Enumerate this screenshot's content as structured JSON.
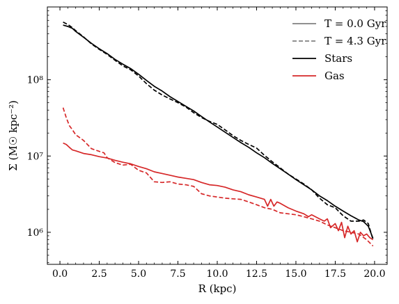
{
  "chart_data": {
    "type": "line",
    "xlabel": "R (kpc)",
    "ylabel": "Σ (M☉ kpc⁻²)",
    "xlim": [
      -0.8,
      20.8
    ],
    "ylim": [
      380000.0,
      900000000.0
    ],
    "yscale": "log",
    "grid": false,
    "legend_placement": "top-right",
    "x_ticks": [
      0.0,
      2.5,
      5.0,
      7.5,
      10.0,
      12.5,
      15.0,
      17.5,
      20.0
    ],
    "x_tick_labels": [
      "0.0",
      "2.5",
      "5.0",
      "7.5",
      "10.0",
      "12.5",
      "15.0",
      "17.5",
      "20.0"
    ],
    "y_ticks": [
      1000000,
      10000000,
      100000000
    ],
    "y_tick_labels": [
      "10⁶",
      "10⁷",
      "10⁸"
    ],
    "legend": [
      {
        "label": "T = 0.0 Gyr",
        "color": "#808080",
        "style": "solid"
      },
      {
        "label": "T = 4.3 Gyr",
        "color": "#808080",
        "style": "dashed"
      },
      {
        "label": "Stars",
        "color": "#000000",
        "style": "solid"
      },
      {
        "label": "Gas",
        "color": "#d62728",
        "style": "solid"
      }
    ],
    "series": [
      {
        "color": "#000000",
        "style": "solid",
        "points": [
          [
            0.2,
            520000000.0
          ],
          [
            0.5,
            500000000.0
          ],
          [
            0.8,
            470000000.0
          ],
          [
            1.0,
            430000000.0
          ],
          [
            1.5,
            360000000.0
          ],
          [
            2.0,
            300000000.0
          ],
          [
            2.5,
            255000000.0
          ],
          [
            3.0,
            220000000.0
          ],
          [
            3.5,
            185000000.0
          ],
          [
            4.0,
            160000000.0
          ],
          [
            4.5,
            140000000.0
          ],
          [
            5.0,
            118000000.0
          ],
          [
            5.5,
            98000000.0
          ],
          [
            6.0,
            82000000.0
          ],
          [
            6.5,
            71000000.0
          ],
          [
            7.0,
            60000000.0
          ],
          [
            7.5,
            52000000.0
          ],
          [
            8.0,
            45000000.0
          ],
          [
            8.5,
            39000000.0
          ],
          [
            9.0,
            33000000.0
          ],
          [
            9.5,
            28000000.0
          ],
          [
            10.0,
            24000000.0
          ],
          [
            10.5,
            20500000.0
          ],
          [
            11.0,
            17500000.0
          ],
          [
            11.5,
            15000000.0
          ],
          [
            12.0,
            13000000.0
          ],
          [
            12.5,
            11000000.0
          ],
          [
            13.0,
            9500000.0
          ],
          [
            13.5,
            8000000.0
          ],
          [
            14.0,
            6800000.0
          ],
          [
            14.5,
            5800000.0
          ],
          [
            15.0,
            4900000.0
          ],
          [
            15.5,
            4200000.0
          ],
          [
            16.0,
            3600000.0
          ],
          [
            16.5,
            3000000.0
          ],
          [
            17.0,
            2600000.0
          ],
          [
            17.5,
            2200000.0
          ],
          [
            18.0,
            1900000.0
          ],
          [
            18.5,
            1650000.0
          ],
          [
            19.0,
            1450000.0
          ],
          [
            19.3,
            1380000.0
          ],
          [
            19.6,
            1200000.0
          ],
          [
            19.9,
            830000.0
          ]
        ]
      },
      {
        "color": "#000000",
        "style": "dashed",
        "points": [
          [
            0.2,
            570000000.0
          ],
          [
            0.5,
            530000000.0
          ],
          [
            0.8,
            480000000.0
          ],
          [
            1.0,
            440000000.0
          ],
          [
            1.5,
            365000000.0
          ],
          [
            2.0,
            295000000.0
          ],
          [
            2.5,
            250000000.0
          ],
          [
            3.0,
            215000000.0
          ],
          [
            3.5,
            180000000.0
          ],
          [
            4.0,
            152000000.0
          ],
          [
            4.5,
            135000000.0
          ],
          [
            5.0,
            112000000.0
          ],
          [
            5.5,
            89000000.0
          ],
          [
            6.0,
            73000000.0
          ],
          [
            6.5,
            63000000.0
          ],
          [
            7.0,
            56000000.0
          ],
          [
            7.5,
            50000000.0
          ],
          [
            8.0,
            44000000.0
          ],
          [
            8.5,
            37000000.0
          ],
          [
            9.0,
            32000000.0
          ],
          [
            9.5,
            28500000.0
          ],
          [
            10.0,
            26000000.0
          ],
          [
            10.5,
            22000000.0
          ],
          [
            11.0,
            18500000.0
          ],
          [
            11.5,
            16000000.0
          ],
          [
            12.0,
            14200000.0
          ],
          [
            12.5,
            12700000.0
          ],
          [
            13.0,
            10200000.0
          ],
          [
            13.5,
            8400000.0
          ],
          [
            14.0,
            7000000.0
          ],
          [
            14.5,
            5800000.0
          ],
          [
            15.0,
            5000000.0
          ],
          [
            15.5,
            4300000.0
          ],
          [
            16.0,
            3600000.0
          ],
          [
            16.5,
            2800000.0
          ],
          [
            17.0,
            2300000.0
          ],
          [
            17.5,
            2100000.0
          ],
          [
            18.0,
            1650000.0
          ],
          [
            18.5,
            1400000.0
          ],
          [
            19.0,
            1400000.0
          ],
          [
            19.3,
            1450000.0
          ],
          [
            19.6,
            1300000.0
          ],
          [
            19.9,
            800000.0
          ]
        ]
      },
      {
        "color": "#d62728",
        "style": "solid",
        "points": [
          [
            0.2,
            14800000.0
          ],
          [
            0.4,
            14200000.0
          ],
          [
            0.6,
            13000000.0
          ],
          [
            0.8,
            12000000.0
          ],
          [
            1.0,
            11700000.0
          ],
          [
            1.5,
            10800000.0
          ],
          [
            2.0,
            10400000.0
          ],
          [
            2.5,
            9800000.0
          ],
          [
            3.0,
            9400000.0
          ],
          [
            3.5,
            8800000.0
          ],
          [
            4.0,
            8300000.0
          ],
          [
            4.5,
            7900000.0
          ],
          [
            5.0,
            7300000.0
          ],
          [
            5.5,
            6800000.0
          ],
          [
            6.0,
            6200000.0
          ],
          [
            6.5,
            5900000.0
          ],
          [
            7.0,
            5600000.0
          ],
          [
            7.5,
            5300000.0
          ],
          [
            8.0,
            5100000.0
          ],
          [
            8.5,
            4900000.0
          ],
          [
            9.0,
            4500000.0
          ],
          [
            9.5,
            4200000.0
          ],
          [
            10.0,
            4100000.0
          ],
          [
            10.5,
            3900000.0
          ],
          [
            11.0,
            3600000.0
          ],
          [
            11.5,
            3400000.0
          ],
          [
            12.0,
            3100000.0
          ],
          [
            12.5,
            2900000.0
          ],
          [
            13.0,
            2700000.0
          ],
          [
            13.2,
            2200000.0
          ],
          [
            13.4,
            2700000.0
          ],
          [
            13.6,
            2200000.0
          ],
          [
            13.8,
            2500000.0
          ],
          [
            14.0,
            2400000.0
          ],
          [
            14.5,
            2100000.0
          ],
          [
            15.0,
            1900000.0
          ],
          [
            15.5,
            1750000.0
          ],
          [
            15.8,
            1600000.0
          ],
          [
            16.0,
            1700000.0
          ],
          [
            16.5,
            1500000.0
          ],
          [
            16.8,
            1400000.0
          ],
          [
            17.0,
            1500000.0
          ],
          [
            17.2,
            1150000.0
          ],
          [
            17.5,
            1300000.0
          ],
          [
            17.7,
            1050000.0
          ],
          [
            17.9,
            1350000.0
          ],
          [
            18.1,
            850000.0
          ],
          [
            18.3,
            1200000.0
          ],
          [
            18.5,
            950000.0
          ],
          [
            18.7,
            1050000.0
          ],
          [
            18.9,
            750000.0
          ],
          [
            19.1,
            1000000.0
          ],
          [
            19.3,
            900000.0
          ],
          [
            19.5,
            950000.0
          ],
          [
            19.7,
            850000.0
          ],
          [
            19.9,
            800000.0
          ]
        ]
      },
      {
        "color": "#d62728",
        "style": "dashed",
        "points": [
          [
            0.2,
            43000000.0
          ],
          [
            0.4,
            32000000.0
          ],
          [
            0.6,
            25000000.0
          ],
          [
            0.8,
            22000000.0
          ],
          [
            1.0,
            19000000.0
          ],
          [
            1.5,
            16000000.0
          ],
          [
            2.0,
            12500000.0
          ],
          [
            2.5,
            11500000.0
          ],
          [
            2.8,
            11000000.0
          ],
          [
            3.0,
            9500000.0
          ],
          [
            3.5,
            8200000.0
          ],
          [
            4.0,
            7600000.0
          ],
          [
            4.5,
            7800000.0
          ],
          [
            5.0,
            6500000.0
          ],
          [
            5.5,
            6000000.0
          ],
          [
            6.0,
            4600000.0
          ],
          [
            6.5,
            4500000.0
          ],
          [
            7.0,
            4600000.0
          ],
          [
            7.5,
            4300000.0
          ],
          [
            8.0,
            4200000.0
          ],
          [
            8.5,
            4000000.0
          ],
          [
            9.0,
            3200000.0
          ],
          [
            9.5,
            3000000.0
          ],
          [
            10.0,
            2900000.0
          ],
          [
            10.5,
            2800000.0
          ],
          [
            11.0,
            2750000.0
          ],
          [
            11.5,
            2700000.0
          ],
          [
            12.0,
            2500000.0
          ],
          [
            12.5,
            2300000.0
          ],
          [
            13.0,
            2100000.0
          ],
          [
            13.5,
            2000000.0
          ],
          [
            14.0,
            1800000.0
          ],
          [
            14.5,
            1750000.0
          ],
          [
            15.0,
            1700000.0
          ],
          [
            15.5,
            1600000.0
          ],
          [
            16.0,
            1500000.0
          ],
          [
            16.5,
            1400000.0
          ],
          [
            17.0,
            1250000.0
          ],
          [
            17.5,
            1150000.0
          ],
          [
            18.0,
            1050000.0
          ],
          [
            18.5,
            1000000.0
          ],
          [
            19.0,
            950000.0
          ],
          [
            19.5,
            800000.0
          ],
          [
            19.9,
            660000.0
          ]
        ]
      }
    ]
  }
}
